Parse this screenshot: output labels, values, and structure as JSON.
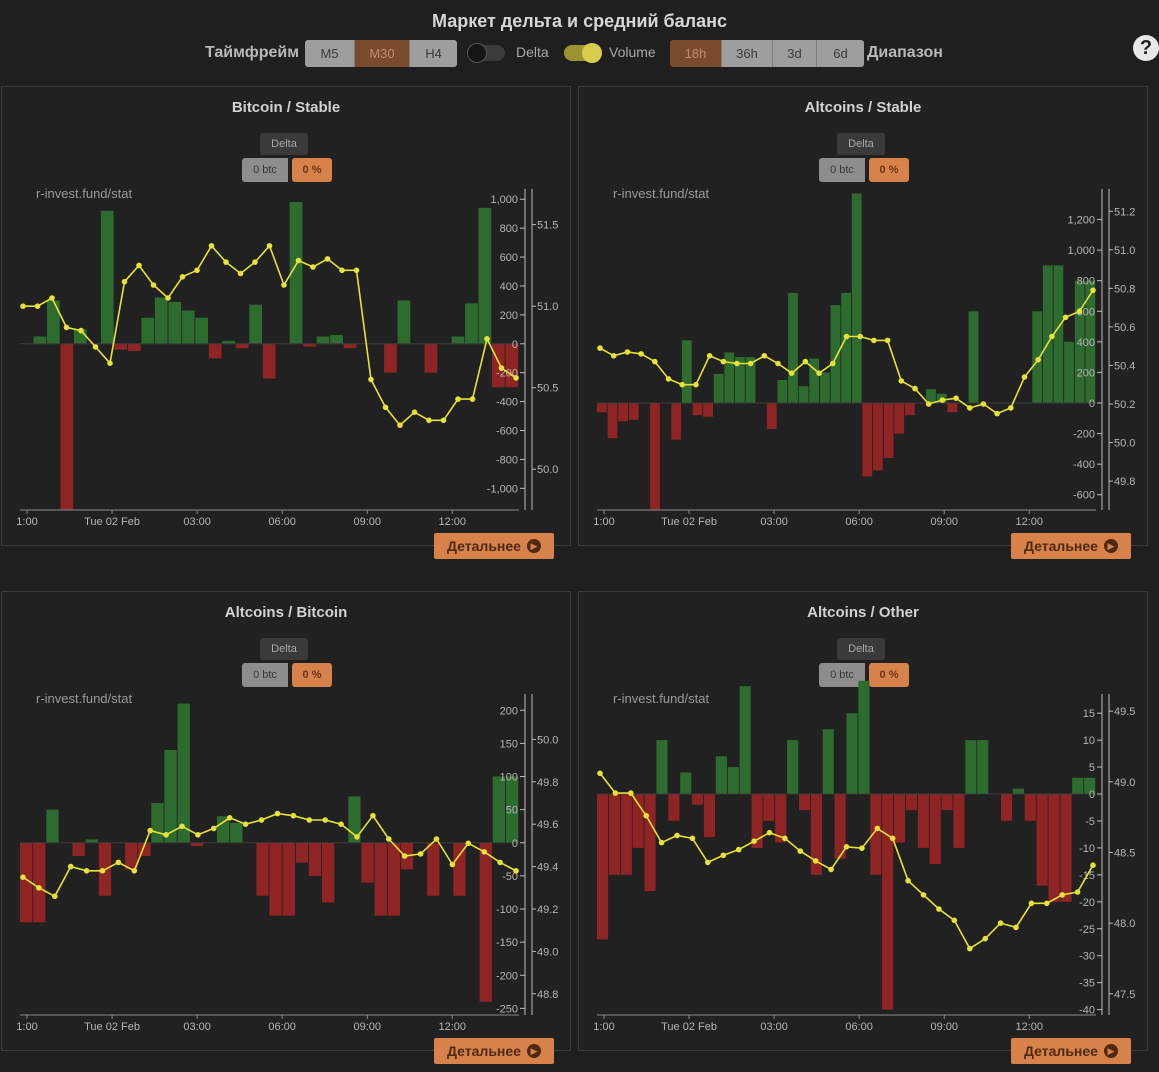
{
  "header": {
    "title": "Маркет дельта и средний баланс",
    "timeframe_label": "Таймфрейм",
    "timeframes": [
      "M5",
      "M30",
      "H4"
    ],
    "timeframe_active": "M30",
    "delta_toggle_label": "Delta",
    "delta_toggle_on": false,
    "volume_toggle_label": "Volume",
    "volume_toggle_on": true,
    "ranges": [
      "18h",
      "36h",
      "3d",
      "6d"
    ],
    "range_active": "18h",
    "range_label": "Диапазон",
    "help_icon": "question-circle-icon"
  },
  "colors": {
    "positive_bar": "#2e6b2e",
    "negative_bar": "#8e2424",
    "balance_line": "#e6e23a",
    "accent": "#d8824b"
  },
  "common": {
    "delta_label": "Delta",
    "btc_badge": "0 btc",
    "pct_badge": "0 %",
    "watermark": "r-invest.fund/stat",
    "details_button": "Детальнее",
    "details_icon": "chevron-right-circle-icon"
  },
  "panels": [
    {
      "title": "Bitcoin / Stable",
      "chart_data": {
        "type": "bar+line",
        "x_ticks": [
          "1:00",
          "Tue 02 Feb",
          "03:00",
          "06:00",
          "09:00",
          "12:00"
        ],
        "x_tick_index": [
          0,
          3,
          6,
          9,
          12,
          15
        ],
        "left_axis": {
          "ticks": [
            1000,
            800,
            600,
            400,
            200,
            0,
            -200,
            -400,
            -600,
            -800,
            -1000
          ],
          "range": [
            -1150,
            1050
          ]
        },
        "right_axis": {
          "ticks": [
            51.5,
            51.0,
            50.5,
            50.0
          ],
          "range": [
            49.75,
            51.7
          ]
        },
        "delta": [
          0,
          50,
          300,
          -1150,
          100,
          0,
          920,
          -40,
          -50,
          180,
          320,
          290,
          230,
          180,
          -100,
          20,
          -30,
          270,
          -240,
          0,
          980,
          -20,
          50,
          60,
          -30,
          0,
          0,
          -200,
          300,
          0,
          -200,
          0,
          50,
          280,
          940,
          -300,
          -300
        ],
        "balance": [
          51.0,
          51.0,
          51.05,
          50.87,
          50.85,
          50.75,
          50.65,
          51.15,
          51.25,
          51.13,
          51.05,
          51.18,
          51.22,
          51.37,
          51.27,
          51.2,
          51.27,
          51.37,
          51.13,
          51.28,
          51.24,
          51.29,
          51.22,
          51.22,
          50.55,
          50.38,
          50.27,
          50.35,
          50.3,
          50.3,
          50.43,
          50.43,
          50.8,
          50.62,
          50.56
        ]
      }
    },
    {
      "title": "Altcoins / Stable",
      "chart_data": {
        "type": "bar+line",
        "x_ticks": [
          "1:00",
          "Tue 02 Feb",
          "03:00",
          "06:00",
          "09:00",
          "12:00"
        ],
        "x_tick_index": [
          0,
          3,
          6,
          9,
          12,
          15
        ],
        "left_axis": {
          "ticks": [
            1200,
            1000,
            800,
            600,
            400,
            200,
            0,
            -200,
            -400,
            -600
          ],
          "range": [
            -700,
            1380
          ]
        },
        "right_axis": {
          "ticks": [
            51.2,
            51.0,
            50.8,
            50.6,
            50.4,
            50.2,
            50.0,
            49.8
          ],
          "range": [
            49.65,
            51.3
          ]
        },
        "delta": [
          -60,
          -230,
          -120,
          -110,
          0,
          -700,
          0,
          -240,
          410,
          -80,
          -90,
          190,
          330,
          300,
          300,
          0,
          -170,
          150,
          720,
          110,
          290,
          200,
          640,
          720,
          1370,
          -480,
          -440,
          -360,
          -200,
          -80,
          0,
          90,
          60,
          -60,
          0,
          600,
          0,
          0,
          0,
          0,
          0,
          600,
          900,
          900,
          400,
          800,
          800
        ],
        "balance": [
          50.49,
          50.45,
          50.47,
          50.46,
          50.42,
          50.33,
          50.3,
          50.3,
          50.45,
          50.42,
          50.41,
          50.41,
          50.45,
          50.41,
          50.36,
          50.42,
          50.36,
          50.41,
          50.55,
          50.55,
          50.53,
          50.53,
          50.32,
          50.28,
          50.2,
          50.22,
          50.23,
          50.18,
          50.2,
          50.15,
          50.18,
          50.34,
          50.43,
          50.55,
          50.65,
          50.68,
          50.79
        ]
      }
    },
    {
      "title": "Altcoins / Bitcoin",
      "chart_data": {
        "type": "bar+line",
        "x_ticks": [
          "1:00",
          "Tue 02 Feb",
          "03:00",
          "06:00",
          "09:00",
          "12:00"
        ],
        "x_tick_index": [
          0,
          3,
          6,
          9,
          12,
          15
        ],
        "left_axis": {
          "ticks": [
            200,
            150,
            100,
            50,
            0,
            -50,
            -100,
            -150,
            -200,
            -250
          ],
          "range": [
            -260,
            220
          ]
        },
        "right_axis": {
          "ticks": [
            50.0,
            49.8,
            49.6,
            49.4,
            49.2,
            49.0,
            48.8
          ],
          "range": [
            48.7,
            50.2
          ]
        },
        "delta": [
          -120,
          -120,
          50,
          0,
          -20,
          5,
          -80,
          0,
          -40,
          -20,
          60,
          140,
          210,
          -5,
          0,
          40,
          30,
          0,
          -80,
          -110,
          -110,
          -30,
          -50,
          -90,
          0,
          70,
          -60,
          -110,
          -110,
          -40,
          0,
          -80,
          0,
          -80,
          0,
          -240,
          100,
          100
        ],
        "balance": [
          49.35,
          49.3,
          49.26,
          49.4,
          49.38,
          49.38,
          49.42,
          49.38,
          49.57,
          49.55,
          49.59,
          49.55,
          49.58,
          49.63,
          49.6,
          49.62,
          49.65,
          49.64,
          49.62,
          49.62,
          49.6,
          49.54,
          49.64,
          49.53,
          49.45,
          49.46,
          49.53,
          49.41,
          49.51,
          49.47,
          49.42,
          49.38
        ]
      }
    },
    {
      "title": "Altcoins / Other",
      "chart_data": {
        "type": "bar+line",
        "x_ticks": [
          "1:00",
          "Tue 02 Feb",
          "03:00",
          "06:00",
          "09:00",
          "12:00"
        ],
        "x_tick_index": [
          0,
          3,
          6,
          9,
          12,
          15
        ],
        "left_axis": {
          "ticks": [
            15,
            10,
            5,
            0,
            -5,
            -10,
            -15,
            -20,
            -25,
            -30,
            -35,
            -40
          ],
          "range": [
            -41,
            18
          ]
        },
        "right_axis": {
          "ticks": [
            49.5,
            49.0,
            48.5,
            48.0,
            47.5
          ],
          "range": [
            47.35,
            49.6
          ]
        },
        "delta": [
          -27,
          -15,
          -15,
          -10,
          -18,
          10,
          -5,
          4,
          -2,
          -8,
          7,
          5,
          20,
          -10,
          -5,
          -9,
          10,
          -3,
          -15,
          12,
          -12,
          15,
          21,
          -15,
          -40,
          -9,
          -3,
          -10,
          -13,
          -3,
          -10,
          10,
          10,
          0,
          -5,
          1,
          -5,
          -17,
          -20,
          -20,
          3,
          3
        ],
        "balance": [
          49.06,
          48.92,
          48.92,
          48.76,
          48.57,
          48.62,
          48.6,
          48.43,
          48.48,
          48.52,
          48.58,
          48.64,
          48.6,
          48.51,
          48.44,
          48.38,
          48.54,
          48.53,
          48.67,
          48.6,
          48.3,
          48.2,
          48.1,
          48.02,
          47.82,
          47.89,
          48.0,
          47.97,
          48.14,
          48.14,
          48.2,
          48.22,
          48.41
        ]
      }
    }
  ]
}
